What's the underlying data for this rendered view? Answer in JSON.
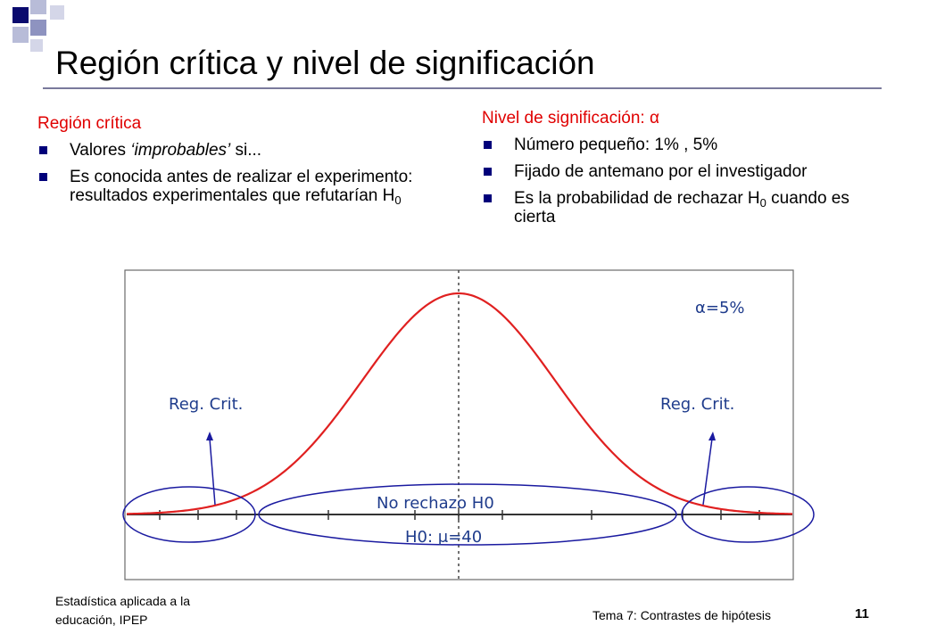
{
  "title": "Región crítica y nivel de significación",
  "left": {
    "heading": "Región crítica",
    "bullets": [
      {
        "pre": "Valores ",
        "em": "‘improbables’",
        "post": " si..."
      },
      {
        "text": "Es conocida antes de realizar el experimento: resultados experimentales que refutarían H",
        "sub": "0"
      }
    ]
  },
  "right": {
    "heading": "Nivel de significación: α",
    "bullets": [
      {
        "text": "Número pequeño: 1% , 5%"
      },
      {
        "text": "Fijado de antemano por el investigador"
      },
      {
        "text": "Es la probabilidad de rechazar H",
        "sub": "0",
        "post": " cuando es cierta"
      }
    ]
  },
  "diagram": {
    "alpha_label": "α=5%",
    "left_region_label": "Reg. Crit.",
    "right_region_label": "Reg. Crit.",
    "center_region_label": "No rechazo H0",
    "h0_label": "H0: μ=40",
    "curve_color": "#e02020",
    "ellipse_color": "#1a1aa0"
  },
  "footer": {
    "left_line1": "Estadística aplicada a la",
    "left_line2": "educación,   IPEP",
    "right": "Tema 7: Contrastes de hipótesis",
    "page": "11"
  }
}
